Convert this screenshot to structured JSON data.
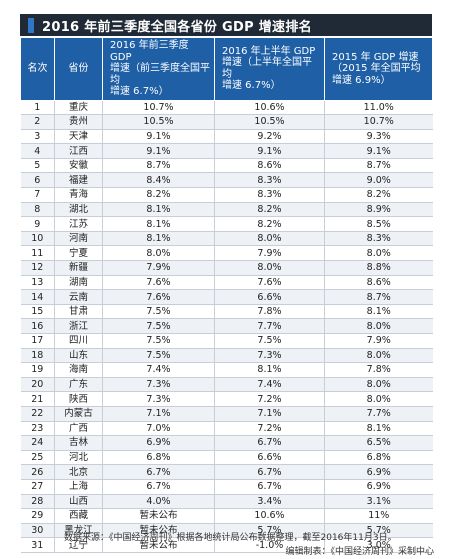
{
  "title": "2016 年前三季度全国各省份 GDP 增速排名",
  "colors": {
    "header_bg": "#1f5fa6",
    "title_bg": "#1f2a36",
    "title_mark": "#2f76c6",
    "stripe": "#eef1f5"
  },
  "headers": {
    "rank": "名次",
    "province": "省份",
    "q3_line1": "2016 年前三季度 GDP",
    "q3_line2": "增速（前三季度全国平均",
    "q3_line3": "增速 6.7%）",
    "h1_line1": "2016 年上半年 GDP",
    "h1_line2": "增速（上半年全国平均",
    "h1_line3": "增速 6.7%）",
    "y2015_line1": "2015 年 GDP 增速",
    "y2015_line2": "（2015 年全国平均",
    "y2015_line3": "增速 6.9%）"
  },
  "rows": [
    {
      "rank": "1",
      "province": "重庆",
      "q3": "10.7%",
      "h1": "10.6%",
      "y2015": "11.0%"
    },
    {
      "rank": "2",
      "province": "贵州",
      "q3": "10.5%",
      "h1": "10.5%",
      "y2015": "10.7%"
    },
    {
      "rank": "3",
      "province": "天津",
      "q3": "9.1%",
      "h1": "9.2%",
      "y2015": "9.3%"
    },
    {
      "rank": "4",
      "province": "江西",
      "q3": "9.1%",
      "h1": "9.1%",
      "y2015": "9.1%"
    },
    {
      "rank": "5",
      "province": "安徽",
      "q3": "8.7%",
      "h1": "8.6%",
      "y2015": "8.7%"
    },
    {
      "rank": "6",
      "province": "福建",
      "q3": "8.4%",
      "h1": "8.3%",
      "y2015": "9.0%"
    },
    {
      "rank": "7",
      "province": "青海",
      "q3": "8.2%",
      "h1": "8.3%",
      "y2015": "8.2%"
    },
    {
      "rank": "8",
      "province": "湖北",
      "q3": "8.1%",
      "h1": "8.2%",
      "y2015": "8.9%"
    },
    {
      "rank": "9",
      "province": "江苏",
      "q3": "8.1%",
      "h1": "8.2%",
      "y2015": "8.5%"
    },
    {
      "rank": "10",
      "province": "河南",
      "q3": "8.1%",
      "h1": "8.0%",
      "y2015": "8.3%"
    },
    {
      "rank": "11",
      "province": "宁夏",
      "q3": "8.0%",
      "h1": "7.9%",
      "y2015": "8.0%"
    },
    {
      "rank": "12",
      "province": "新疆",
      "q3": "7.9%",
      "h1": "8.0%",
      "y2015": "8.8%"
    },
    {
      "rank": "13",
      "province": "湖南",
      "q3": "7.6%",
      "h1": "7.6%",
      "y2015": "8.6%"
    },
    {
      "rank": "14",
      "province": "云南",
      "q3": "7.6%",
      "h1": "6.6%",
      "y2015": "8.7%"
    },
    {
      "rank": "15",
      "province": "甘肃",
      "q3": "7.5%",
      "h1": "7.8%",
      "y2015": "8.1%"
    },
    {
      "rank": "16",
      "province": "浙江",
      "q3": "7.5%",
      "h1": "7.7%",
      "y2015": "8.0%"
    },
    {
      "rank": "17",
      "province": "四川",
      "q3": "7.5%",
      "h1": "7.5%",
      "y2015": "7.9%"
    },
    {
      "rank": "18",
      "province": "山东",
      "q3": "7.5%",
      "h1": "7.3%",
      "y2015": "8.0%"
    },
    {
      "rank": "19",
      "province": "海南",
      "q3": "7.4%",
      "h1": "8.1%",
      "y2015": "7.8%"
    },
    {
      "rank": "20",
      "province": "广东",
      "q3": "7.3%",
      "h1": "7.4%",
      "y2015": "8.0%"
    },
    {
      "rank": "21",
      "province": "陕西",
      "q3": "7.3%",
      "h1": "7.2%",
      "y2015": "8.0%"
    },
    {
      "rank": "22",
      "province": "内蒙古",
      "q3": "7.1%",
      "h1": "7.1%",
      "y2015": "7.7%"
    },
    {
      "rank": "23",
      "province": "广西",
      "q3": "7.0%",
      "h1": "7.2%",
      "y2015": "8.1%"
    },
    {
      "rank": "24",
      "province": "吉林",
      "q3": "6.9%",
      "h1": "6.7%",
      "y2015": "6.5%"
    },
    {
      "rank": "25",
      "province": "河北",
      "q3": "6.8%",
      "h1": "6.6%",
      "y2015": "6.8%"
    },
    {
      "rank": "26",
      "province": "北京",
      "q3": "6.7%",
      "h1": "6.7%",
      "y2015": "6.9%"
    },
    {
      "rank": "27",
      "province": "上海",
      "q3": "6.7%",
      "h1": "6.7%",
      "y2015": "6.9%"
    },
    {
      "rank": "28",
      "province": "山西",
      "q3": "4.0%",
      "h1": "3.4%",
      "y2015": "3.1%"
    },
    {
      "rank": "29",
      "province": "西藏",
      "q3": "暂未公布",
      "h1": "10.6%",
      "y2015": "11%"
    },
    {
      "rank": "30",
      "province": "黑龙江",
      "q3": "暂未公布",
      "h1": "5.7%",
      "y2015": "5.7%"
    },
    {
      "rank": "31",
      "province": "辽宁",
      "q3": "暂未公布",
      "h1": "-1.0%",
      "y2015": "3.0%"
    }
  ],
  "footer": {
    "source": "数据来源：《中国经济周刊》根据各地统计局公布数据整理，截至2016年11月3日。",
    "editor": "编辑制表：《中国经济周刊》采制中心"
  }
}
